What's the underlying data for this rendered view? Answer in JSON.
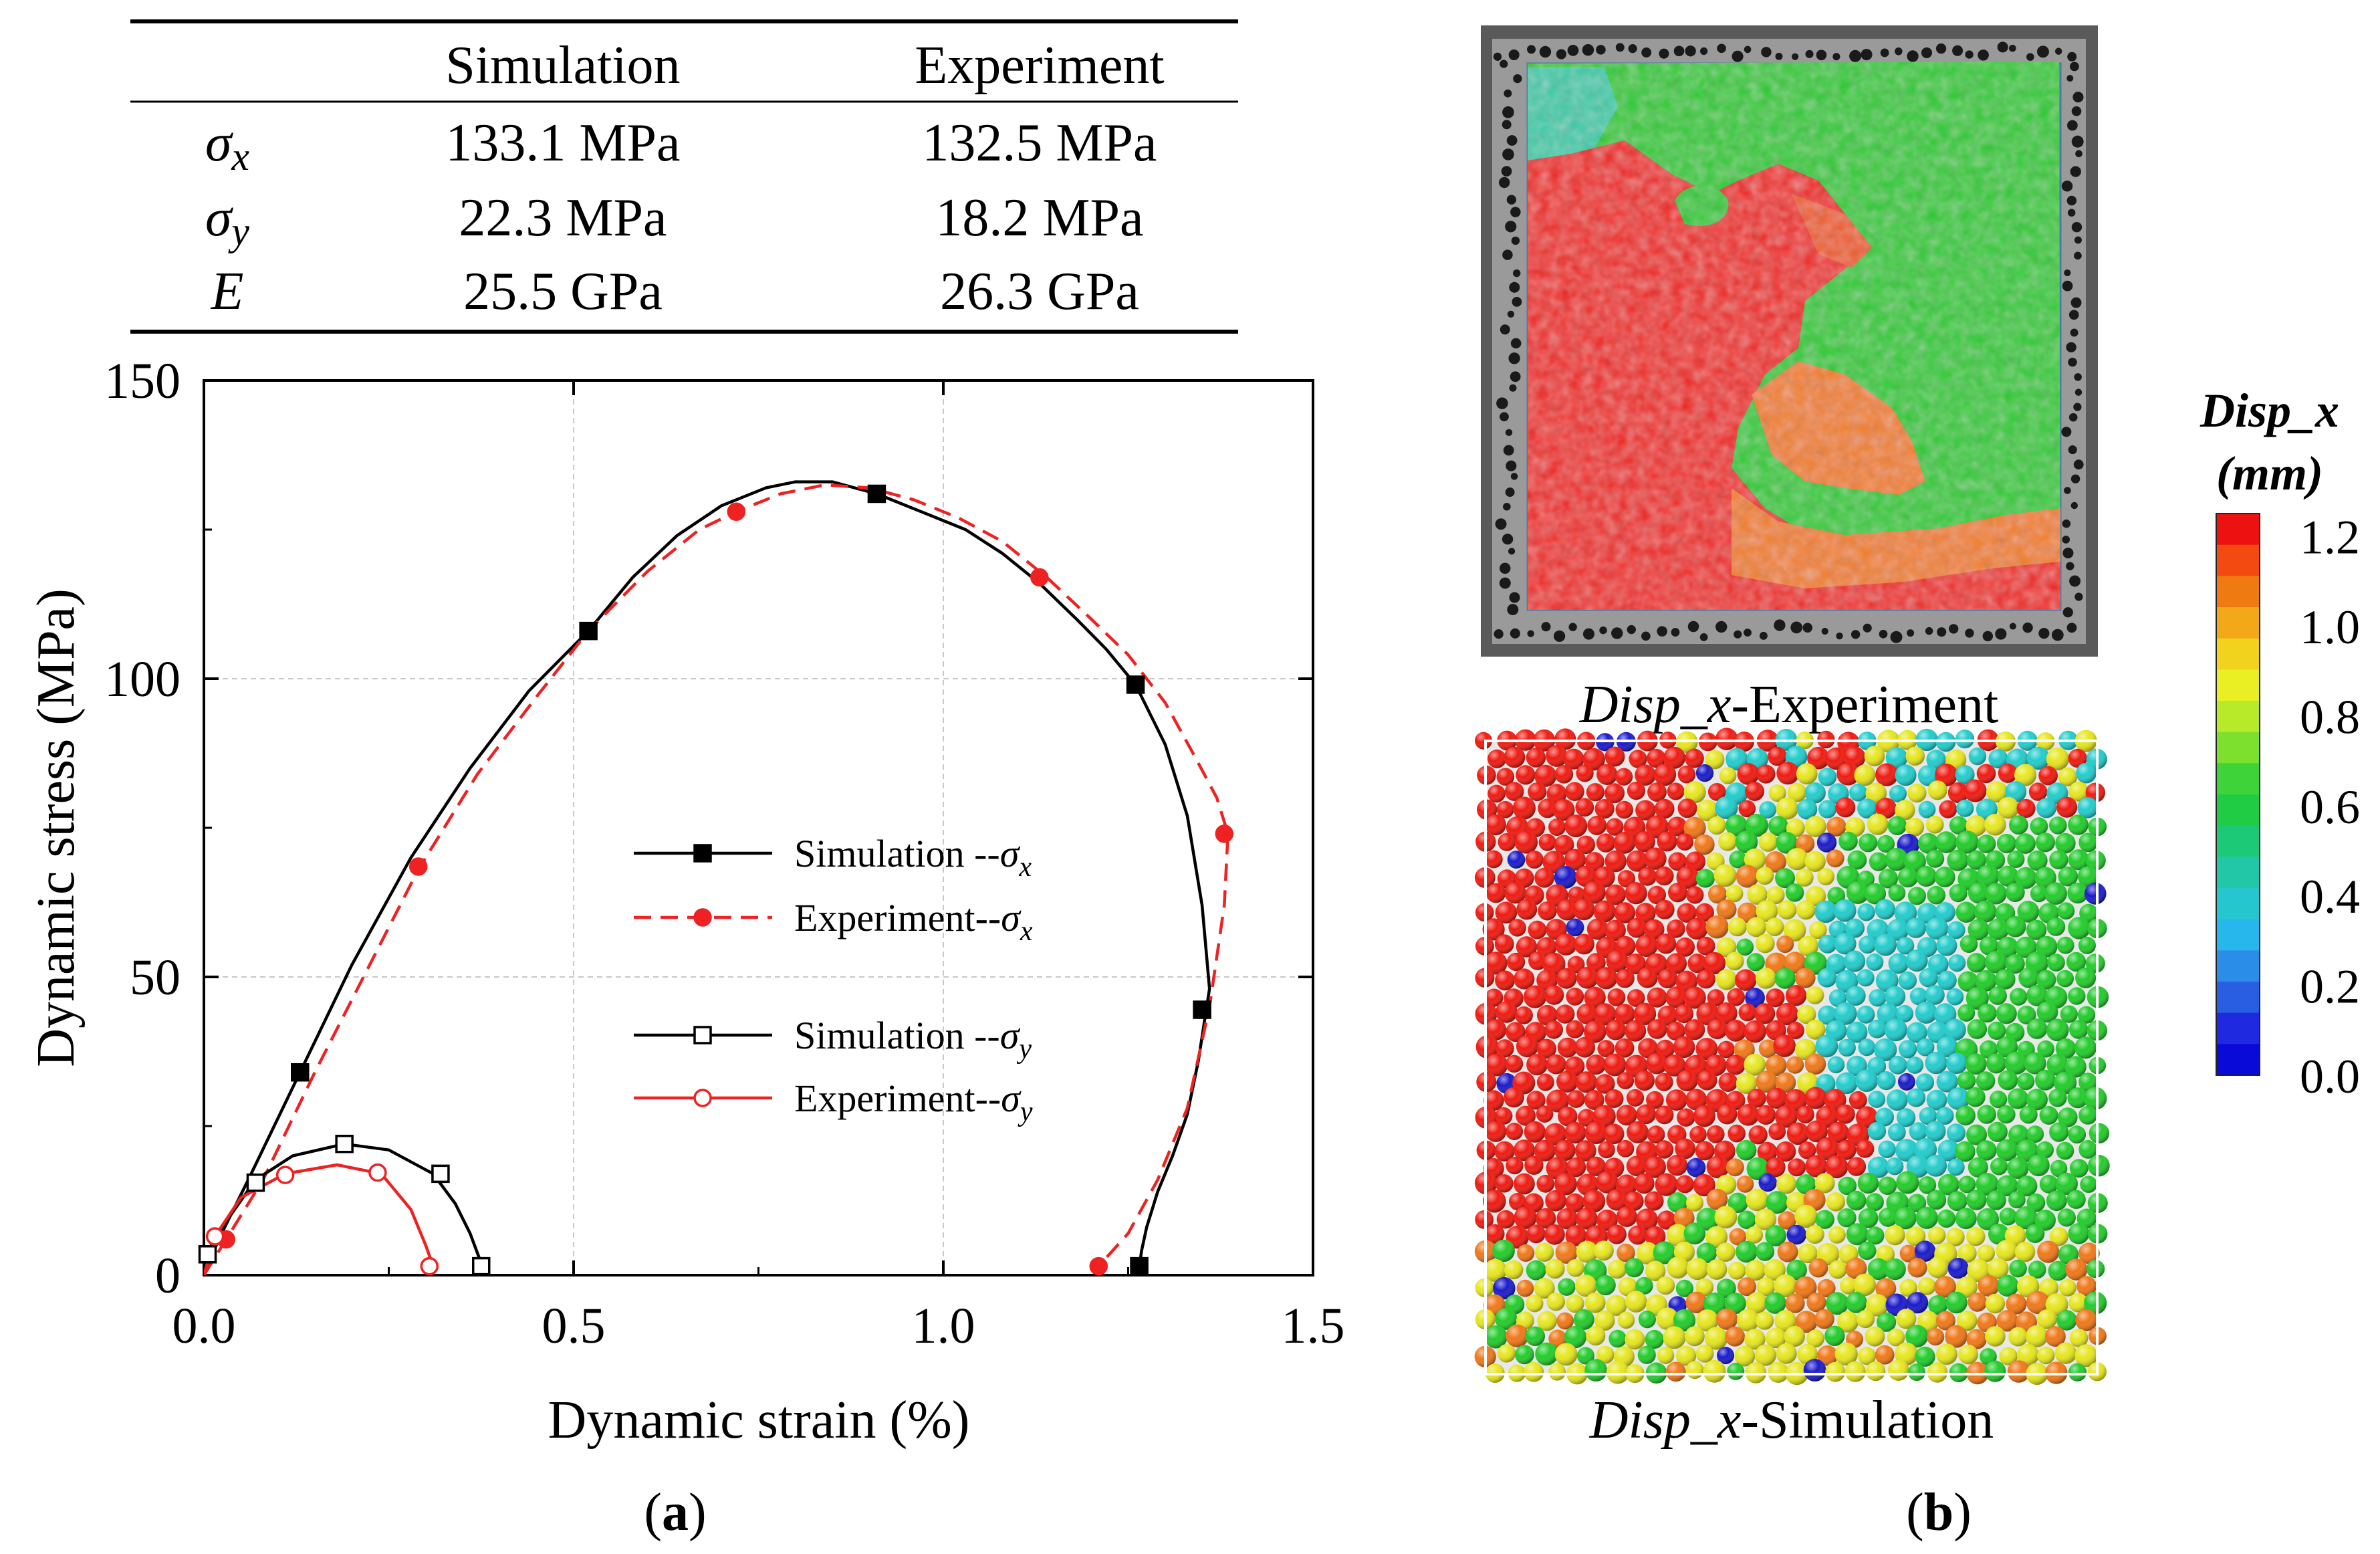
{
  "table": {
    "headers": [
      "",
      "Simulation",
      "Experiment"
    ],
    "rows": [
      {
        "symbol": "σ",
        "sub": "x",
        "simulation": "133.1 MPa",
        "experiment": "132.5 MPa"
      },
      {
        "symbol": "σ",
        "sub": "y",
        "simulation": "22.3 MPa",
        "experiment": "18.2 MPa"
      },
      {
        "symbol": "E",
        "sub": "",
        "simulation": "25.5 GPa",
        "experiment": "26.3 GPa"
      }
    ]
  },
  "panel_a_label": "a",
  "panel_b_label": "b",
  "colorbar": {
    "title_line1": "Disp_x",
    "title_line2": "(mm)",
    "ticks": [
      "1.2",
      "1.0",
      "0.8",
      "0.6",
      "0.4",
      "0.2",
      "0.0"
    ],
    "tick_values": [
      1.2,
      1.0,
      0.8,
      0.6,
      0.4,
      0.2,
      0.0
    ],
    "range": [
      0.0,
      1.25
    ],
    "colors": [
      "#ee1111",
      "#f24a10",
      "#f07a12",
      "#f2a818",
      "#f1d21c",
      "#e9ef22",
      "#b8ea2a",
      "#7ddf2e",
      "#3fd33a",
      "#1fcc44",
      "#1cc977",
      "#21c7a6",
      "#26c6cf",
      "#28b7ec",
      "#2a8ee8",
      "#2a5ee2",
      "#1f2ae0",
      "#0a0ad8"
    ]
  },
  "images": {
    "experiment_caption_italic": "Disp_x",
    "experiment_caption_rest": "-Experiment",
    "simulation_caption_italic": "Disp_x",
    "simulation_caption_rest": "-Simulation",
    "colors": {
      "red": "#f01a10",
      "orange": "#f07818",
      "yellow": "#e6e61e",
      "green": "#22cc2a",
      "cyan": "#22cccc",
      "blue": "#1a1acc",
      "frame": "#777777"
    }
  },
  "chart_data": {
    "type": "line",
    "xlabel": "Dynamic strain (%)",
    "ylabel": "Dynamic stress (MPa)",
    "xlim": [
      0,
      1.5
    ],
    "ylim": [
      0,
      150
    ],
    "xticks": [
      0.0,
      0.5,
      1.0,
      1.5
    ],
    "xtick_labels": [
      "0.0",
      "0.5",
      "1.0",
      "1.5"
    ],
    "yticks": [
      0,
      50,
      100,
      150
    ],
    "ytick_labels": [
      "0",
      "50",
      "100",
      "150"
    ],
    "grid": true,
    "legend_position": "center-right",
    "series": [
      {
        "name": "Simulation --σx",
        "legend_text": "Simulation --σ",
        "legend_sub": "x",
        "color": "#000000",
        "dash": "solid",
        "marker": "filled-square",
        "x": [
          0.0,
          0.02,
          0.06,
          0.13,
          0.2,
          0.28,
          0.36,
          0.44,
          0.52,
          0.58,
          0.64,
          0.7,
          0.76,
          0.8,
          0.85,
          0.91,
          0.97,
          1.03,
          1.08,
          1.13,
          1.18,
          1.22,
          1.26,
          1.3,
          1.33,
          1.35,
          1.36,
          1.355,
          1.345,
          1.33,
          1.31,
          1.29,
          1.275,
          1.268,
          1.265
        ],
        "y": [
          0,
          6,
          16,
          34,
          52,
          70,
          85,
          98,
          108,
          117,
          124,
          129,
          132,
          133,
          133,
          131,
          128,
          125,
          121,
          116,
          110,
          105,
          99,
          89,
          77,
          62,
          48,
          44,
          36,
          27,
          20,
          14,
          8,
          4,
          1
        ],
        "marker_x": [
          0.13,
          0.52,
          0.91,
          1.26,
          1.35,
          1.265
        ],
        "marker_y": [
          34,
          108,
          131,
          99,
          44.5,
          1.5
        ]
      },
      {
        "name": "Experiment--σx",
        "legend_text": "Experiment--σ",
        "legend_sub": "x",
        "color": "#ee2222",
        "dash": "dashed",
        "marker": "filled-circle",
        "x": [
          0.0,
          0.03,
          0.08,
          0.15,
          0.22,
          0.29,
          0.37,
          0.45,
          0.52,
          0.6,
          0.67,
          0.72,
          0.78,
          0.84,
          0.9,
          0.96,
          1.02,
          1.08,
          1.14,
          1.2,
          1.25,
          1.3,
          1.34,
          1.37,
          1.385,
          1.38,
          1.36,
          1.33,
          1.29,
          1.25,
          1.21
        ],
        "y": [
          0,
          6,
          16,
          34,
          51,
          68,
          84,
          97,
          108,
          118,
          125,
          128,
          131,
          132.5,
          132,
          130,
          127,
          123,
          117,
          110,
          104,
          96,
          87,
          80,
          74,
          62,
          45,
          28,
          16,
          7,
          1.5
        ],
        "marker_x": [
          0.03,
          0.29,
          0.72,
          1.13,
          1.38,
          1.21
        ],
        "marker_y": [
          6,
          68.5,
          128,
          117,
          74,
          1.5
        ]
      },
      {
        "name": "Simulation --σy",
        "legend_text": "Simulation --σ",
        "legend_sub": "y",
        "color": "#000000",
        "dash": "solid",
        "marker": "open-square",
        "x": [
          0.0,
          0.005,
          0.03,
          0.07,
          0.12,
          0.19,
          0.25,
          0.31,
          0.34,
          0.36,
          0.375,
          0.38
        ],
        "y": [
          0,
          4,
          9,
          16,
          20,
          22,
          21,
          17,
          12,
          7,
          2,
          1.5
        ],
        "marker_x": [
          0.005,
          0.07,
          0.19,
          0.32,
          0.375
        ],
        "marker_y": [
          3.5,
          15.5,
          22,
          17,
          1.5
        ]
      },
      {
        "name": "Experiment--σy",
        "legend_text": "Experiment--σ",
        "legend_sub": "y",
        "color": "#ee2222",
        "dash": "solid",
        "marker": "open-circle",
        "x": [
          0.0,
          0.015,
          0.05,
          0.11,
          0.18,
          0.24,
          0.28,
          0.3,
          0.31
        ],
        "y": [
          0,
          6.5,
          13,
          17,
          18.5,
          17,
          11,
          5,
          1.5
        ],
        "marker_x": [
          0.015,
          0.11,
          0.235,
          0.305
        ],
        "marker_y": [
          6.5,
          16.8,
          17.2,
          1.5
        ]
      }
    ]
  }
}
